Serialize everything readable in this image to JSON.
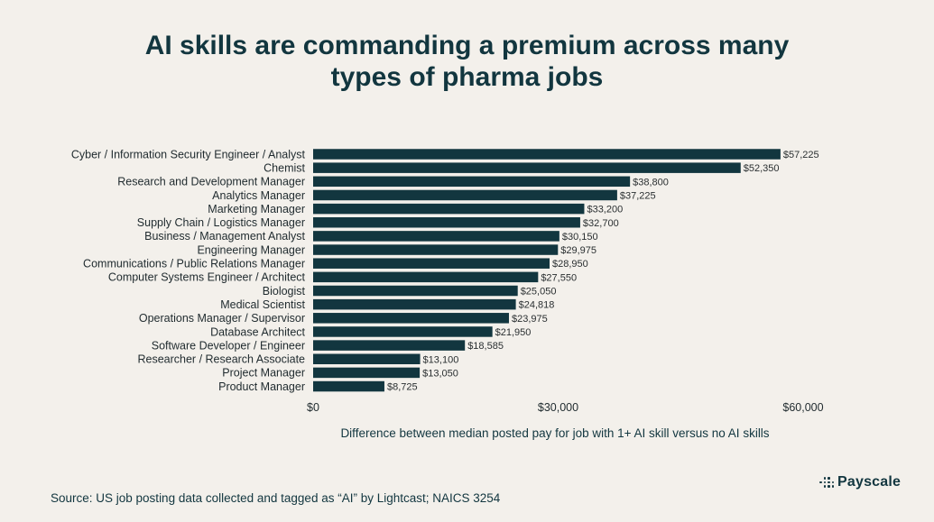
{
  "title_line1": "AI skills are commanding a premium across many",
  "title_line2": "types of pharma jobs",
  "chart_data": {
    "type": "bar",
    "orientation": "horizontal",
    "title": "AI skills are commanding a premium across many types of pharma jobs",
    "xlabel": "Difference between median posted pay for job with 1+ AI skill versus no AI skills",
    "ylabel": "",
    "xlim": [
      0,
      60000
    ],
    "ticks": [
      {
        "value": 0,
        "label": "$0"
      },
      {
        "value": 30000,
        "label": "$30,000"
      },
      {
        "value": 60000,
        "label": "$60,000"
      }
    ],
    "bar_color": "#12363f",
    "categories": [
      "Cyber / Information Security Engineer / Analyst",
      "Chemist",
      "Research and Development Manager",
      "Analytics Manager",
      "Marketing Manager",
      "Supply Chain / Logistics Manager",
      "Business / Management Analyst",
      "Engineering Manager",
      "Communications / Public Relations Manager",
      "Computer Systems Engineer / Architect",
      "Biologist",
      "Medical Scientist",
      "Operations Manager / Supervisor",
      "Database Architect",
      "Software Developer / Engineer",
      "Researcher / Research Associate",
      "Project Manager",
      "Product Manager"
    ],
    "values": [
      57225,
      52350,
      38800,
      37225,
      33200,
      32700,
      30150,
      29975,
      28950,
      27550,
      25050,
      24818,
      23975,
      21950,
      18585,
      13100,
      13050,
      8725
    ],
    "value_labels": [
      "$57,225",
      "$52,350",
      "$38,800",
      "$37,225",
      "$33,200",
      "$32,700",
      "$30,150",
      "$29,975",
      "$28,950",
      "$27,550",
      "$25,050",
      "$24,818",
      "$23,975",
      "$21,950",
      "$18,585",
      "$13,100",
      "$13,050",
      "$8,725"
    ]
  },
  "source": "Source: US job posting data collected and tagged as “AI” by Lightcast; NAICS 3254",
  "logo_text": "Payscale",
  "colors": {
    "background": "#f3f0eb",
    "text": "#12363f"
  }
}
